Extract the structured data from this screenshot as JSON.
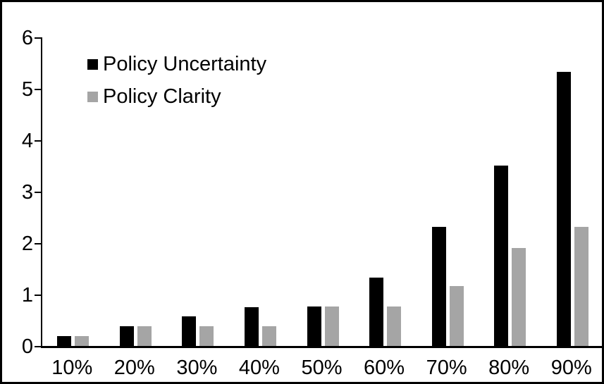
{
  "chart_data": {
    "type": "bar",
    "title": "",
    "xlabel": "",
    "ylabel": "",
    "categories": [
      "10%",
      "20%",
      "30%",
      "40%",
      "50%",
      "60%",
      "70%",
      "80%",
      "90%"
    ],
    "series": [
      {
        "name": "Policy Uncertainty",
        "color": "#000000",
        "values": [
          0.19,
          0.38,
          0.57,
          0.76,
          0.77,
          1.33,
          2.31,
          3.51,
          5.33
        ]
      },
      {
        "name": "Policy Clarity",
        "color": "#a5a5a5",
        "values": [
          0.19,
          0.38,
          0.38,
          0.38,
          0.77,
          0.77,
          1.16,
          1.91,
          2.31
        ]
      }
    ],
    "ylim": [
      0,
      6
    ],
    "yticks": [
      0,
      1,
      2,
      3,
      4,
      5,
      6
    ],
    "grid": false,
    "legend_position": "top-left",
    "frame_color": "#000000",
    "background_color": "#ffffff",
    "axis_color": "#000000",
    "text_color": "#000000"
  }
}
